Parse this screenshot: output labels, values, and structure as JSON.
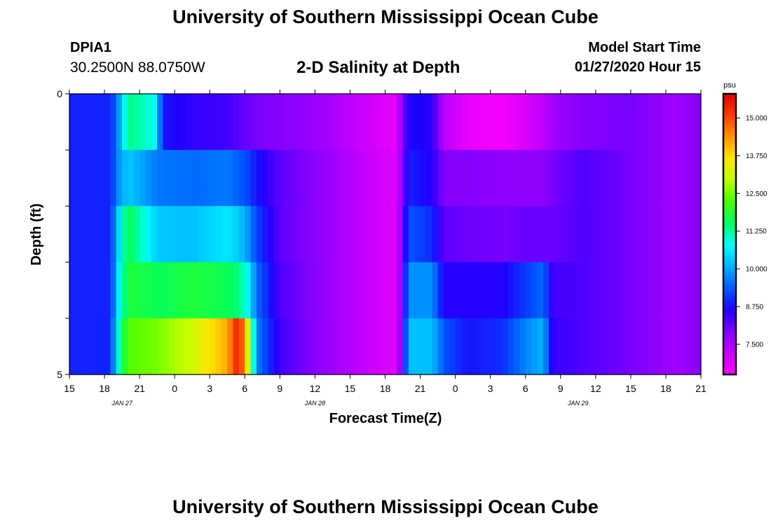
{
  "header": {
    "title": "University of Southern Mississippi Ocean Cube",
    "station_id": "DPIA1",
    "station_coords": "30.2500N 88.0750W",
    "chart_title": "2-D Salinity at Depth",
    "model_start_label": "Model Start Time",
    "model_start_value": "01/27/2020 Hour 15"
  },
  "footer": {
    "title": "University of Southern Mississippi Ocean Cube"
  },
  "chart_data": {
    "type": "heatmap",
    "title": "2-D Salinity at Depth",
    "xlabel": "Forecast Time(Z)",
    "ylabel": "Depth (ft)",
    "units": "psu",
    "x_hours_from_start": [
      0,
      54
    ],
    "x_tick_labels": [
      "15",
      "18",
      "21",
      "0",
      "3",
      "6",
      "9",
      "12",
      "15",
      "18",
      "21",
      "0",
      "3",
      "6",
      "9",
      "12",
      "15",
      "18",
      "21"
    ],
    "date_labels": [
      {
        "label": "JAN  27",
        "hour": 4.5
      },
      {
        "label": "JAN  28",
        "hour": 21
      },
      {
        "label": "JAN  29",
        "hour": 43.5
      }
    ],
    "y_tick_labels": [
      "0",
      "5"
    ],
    "ylim": [
      0,
      5
    ],
    "depth_levels": 5,
    "color_scale": {
      "min": 6.5,
      "max": 15.8,
      "ticks": [
        "15.000",
        "13.750",
        "12.500",
        "11.250",
        "10.000",
        "8.750",
        "7.500"
      ],
      "tick_values": [
        15.0,
        13.75,
        12.5,
        11.25,
        10.0,
        8.75,
        7.5
      ],
      "colors": [
        "#ff00ff",
        "#c800ff",
        "#8200ff",
        "#1e00ff",
        "#005aff",
        "#00b4ff",
        "#00ffff",
        "#00ff64",
        "#46ff00",
        "#beff00",
        "#ffe600",
        "#ff9600",
        "#ff3c00",
        "#e10000"
      ]
    },
    "keyframes": [
      {
        "hour": 0,
        "values": [
          8.9,
          8.9,
          8.9,
          8.9,
          8.9
        ]
      },
      {
        "hour": 3.5,
        "values": [
          8.9,
          8.9,
          8.9,
          8.9,
          8.9
        ]
      },
      {
        "hour": 4.2,
        "values": [
          9.8,
          9.8,
          10.4,
          10.6,
          11.0
        ]
      },
      {
        "hour": 5.0,
        "values": [
          11.4,
          10.3,
          11.7,
          11.8,
          12.3
        ]
      },
      {
        "hour": 7.5,
        "values": [
          10.8,
          9.6,
          10.3,
          11.6,
          12.5
        ]
      },
      {
        "hour": 7.9,
        "values": [
          8.8,
          9.6,
          10.3,
          11.6,
          12.6
        ]
      },
      {
        "hour": 10.5,
        "values": [
          8.5,
          9.5,
          10.2,
          11.8,
          13.1
        ]
      },
      {
        "hour": 13.5,
        "values": [
          8.4,
          9.6,
          10.6,
          11.6,
          14.2
        ]
      },
      {
        "hour": 14.5,
        "values": [
          8.2,
          9.4,
          10.3,
          11.4,
          15.6
        ]
      },
      {
        "hour": 15.2,
        "values": [
          8.1,
          9.2,
          9.9,
          10.8,
          13.5
        ]
      },
      {
        "hour": 16.0,
        "values": [
          8.0,
          8.8,
          9.2,
          9.5,
          9.7
        ]
      },
      {
        "hour": 18.0,
        "values": [
          7.9,
          8.2,
          8.2,
          8.3,
          8.4
        ]
      },
      {
        "hour": 22.0,
        "values": [
          7.6,
          7.7,
          7.7,
          7.7,
          7.7
        ]
      },
      {
        "hour": 27.0,
        "values": [
          6.9,
          7.0,
          7.0,
          7.0,
          7.0
        ]
      },
      {
        "hour": 28.0,
        "values": [
          6.8,
          6.9,
          6.9,
          6.9,
          6.9
        ]
      },
      {
        "hour": 28.5,
        "values": [
          8.0,
          8.0,
          8.2,
          8.3,
          8.4
        ]
      },
      {
        "hour": 29.0,
        "values": [
          8.7,
          8.9,
          9.3,
          9.8,
          10.2
        ]
      },
      {
        "hour": 31.0,
        "values": [
          8.6,
          8.6,
          9.0,
          9.8,
          10.2
        ]
      },
      {
        "hour": 32.0,
        "values": [
          7.4,
          7.9,
          8.2,
          8.6,
          9.3
        ]
      },
      {
        "hour": 34.0,
        "values": [
          6.8,
          7.9,
          8.1,
          8.6,
          8.8
        ]
      },
      {
        "hour": 37.0,
        "values": [
          6.6,
          7.8,
          8.0,
          8.6,
          9.0
        ]
      },
      {
        "hour": 39.0,
        "values": [
          7.0,
          7.8,
          8.1,
          9.1,
          9.7
        ]
      },
      {
        "hour": 40.5,
        "values": [
          7.3,
          7.8,
          8.1,
          9.5,
          10.1
        ]
      },
      {
        "hour": 41.3,
        "values": [
          7.6,
          8.0,
          8.1,
          8.4,
          8.5
        ]
      },
      {
        "hour": 44.0,
        "values": [
          7.9,
          8.3,
          8.3,
          8.3,
          8.3
        ]
      },
      {
        "hour": 48.0,
        "values": [
          8.0,
          8.0,
          8.0,
          8.0,
          8.0
        ]
      },
      {
        "hour": 52.0,
        "values": [
          7.6,
          7.6,
          7.6,
          7.6,
          7.6
        ]
      },
      {
        "hour": 54.0,
        "values": [
          7.9,
          7.9,
          7.9,
          7.9,
          7.9
        ]
      }
    ]
  }
}
